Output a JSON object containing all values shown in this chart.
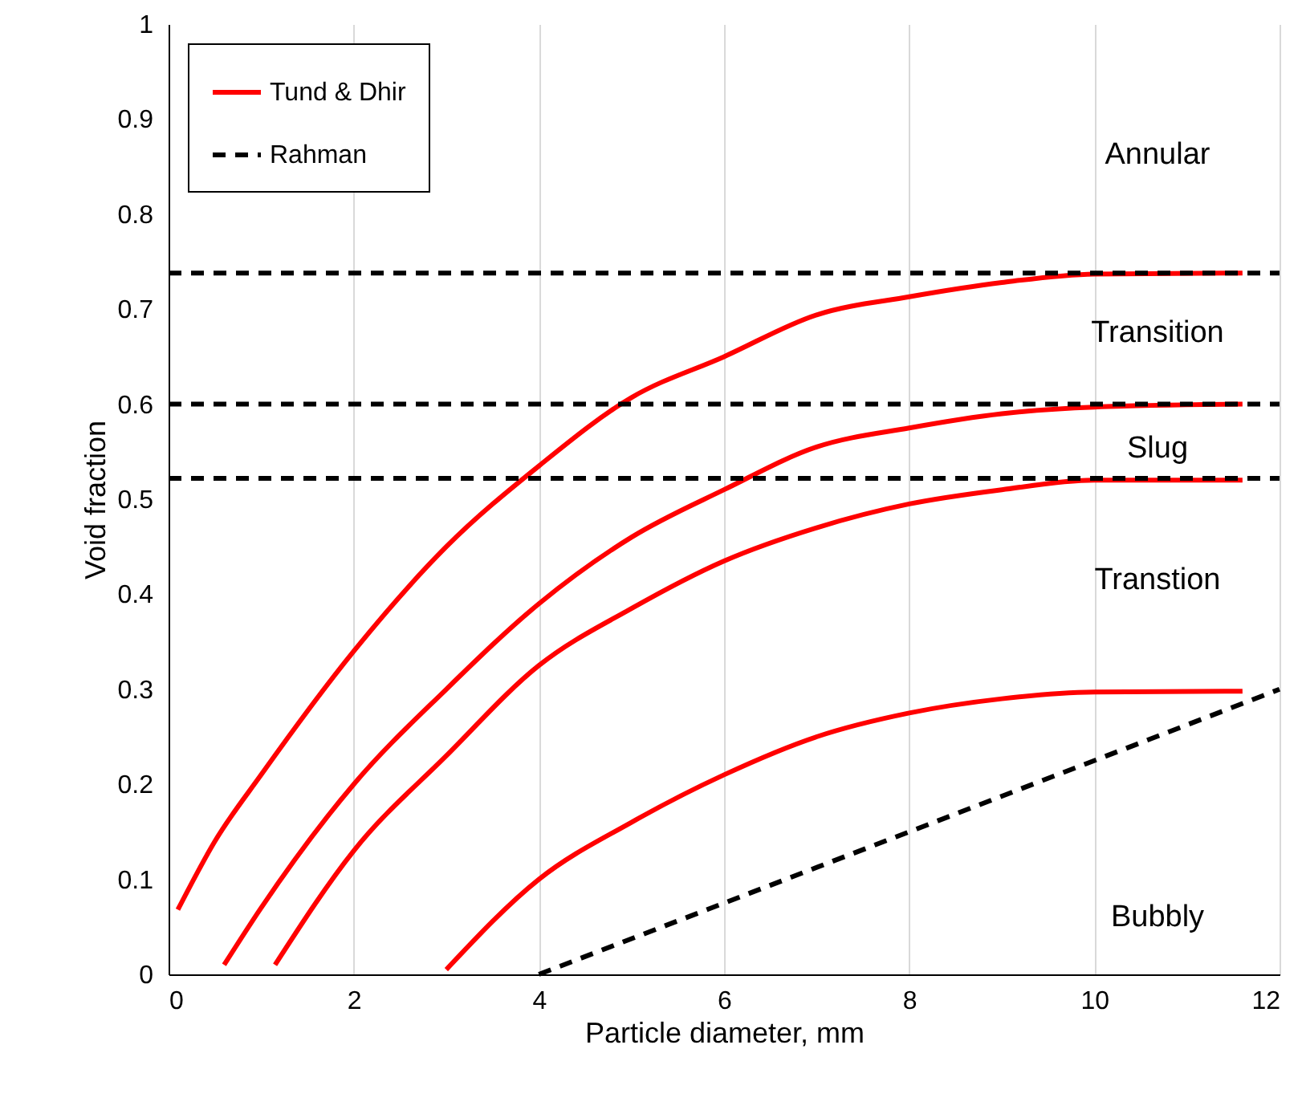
{
  "chart_data": {
    "type": "line",
    "xlabel": "Particle diameter, mm",
    "ylabel": "Void fraction",
    "xlim": [
      0,
      12
    ],
    "ylim": [
      0,
      1
    ],
    "xticks": [
      0,
      2,
      4,
      6,
      8,
      10,
      12
    ],
    "yticks": [
      0,
      0.1,
      0.2,
      0.3,
      0.4,
      0.5,
      0.6,
      0.7,
      0.8,
      0.9,
      1
    ],
    "grid": "x",
    "legend": "top left",
    "marker": "none",
    "series": [
      {
        "name": "Tund & Dhir",
        "color": "#ff0000",
        "line_style": "solid",
        "x": [
          0.1,
          0.5,
          1,
          2,
          3,
          4,
          5,
          6,
          7,
          8,
          9,
          10,
          11.6
        ],
        "values": [
          0.068,
          0.14,
          0.21,
          0.34,
          0.45,
          0.535,
          0.607,
          0.65,
          0.694,
          0.713,
          0.728,
          0.737,
          0.738
        ]
      },
      {
        "color": "#ff0000",
        "line_style": "solid",
        "x": [
          0.6,
          1,
          2,
          3,
          4,
          5,
          6,
          7,
          8,
          9,
          10,
          11.6
        ],
        "values": [
          0.01,
          0.07,
          0.2,
          0.3,
          0.39,
          0.46,
          0.51,
          0.555,
          0.575,
          0.59,
          0.597,
          0.6
        ]
      },
      {
        "color": "#ff0000",
        "line_style": "solid",
        "x": [
          1.15,
          2,
          3,
          4,
          5,
          6,
          7,
          8,
          9,
          10,
          11.6
        ],
        "values": [
          0.01,
          0.13,
          0.23,
          0.325,
          0.385,
          0.435,
          0.47,
          0.495,
          0.51,
          0.52,
          0.52
        ]
      },
      {
        "color": "#ff0000",
        "line_style": "solid",
        "x": [
          3,
          4,
          5,
          6,
          7,
          8,
          9,
          10,
          11.6
        ],
        "values": [
          0.005,
          0.1,
          0.16,
          0.21,
          0.25,
          0.275,
          0.29,
          0.297,
          0.298
        ]
      },
      {
        "name": "Rahman",
        "color": "#000000",
        "line_style": "dashed",
        "x": [
          0,
          12
        ],
        "values": [
          0.738,
          0.738
        ]
      },
      {
        "color": "#000000",
        "line_style": "dashed",
        "x": [
          0,
          12
        ],
        "values": [
          0.6,
          0.6
        ]
      },
      {
        "color": "#000000",
        "line_style": "dashed",
        "x": [
          0,
          12
        ],
        "values": [
          0.522,
          0.522
        ]
      },
      {
        "color": "#000000",
        "line_style": "dashed",
        "x": [
          4,
          12
        ],
        "values": [
          0,
          0.3
        ]
      }
    ],
    "annotations": [
      "Annular",
      "Transition",
      "Slug",
      "Transtion",
      "Bubbly"
    ]
  }
}
